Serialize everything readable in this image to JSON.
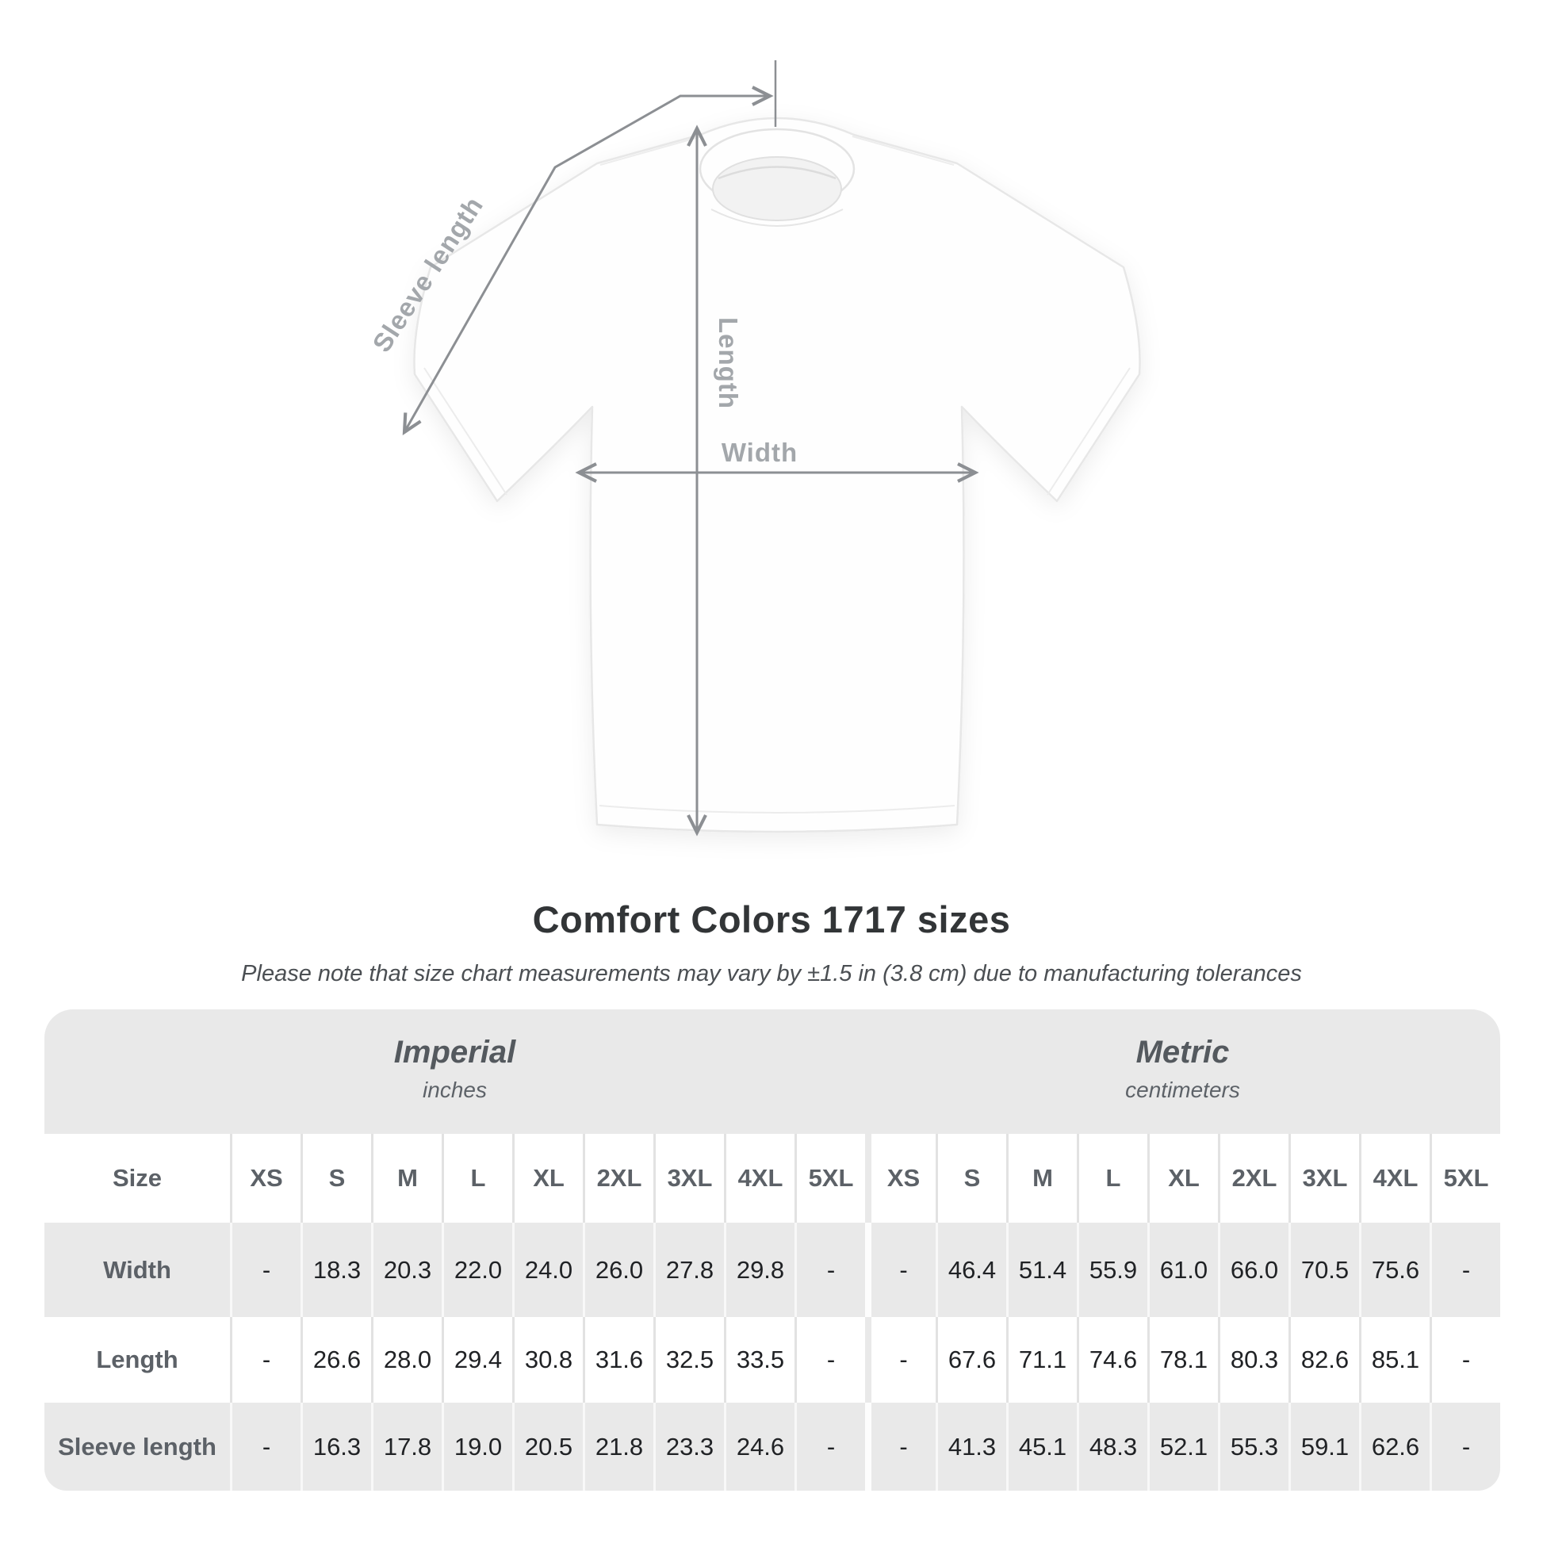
{
  "page": {
    "title": "Comfort Colors 1717 sizes",
    "subtitle": "Please note that size chart measurements may vary by ±1.5 in (3.8 cm) due to manufacturing tolerances"
  },
  "diagram": {
    "sleeve_label": "Sleeve length",
    "length_label": "Length",
    "width_label": "Width",
    "line_color": "#8c8f93",
    "label_color": "#a3a7ab"
  },
  "table": {
    "size_header": "Size",
    "sizes": [
      "XS",
      "S",
      "M",
      "L",
      "XL",
      "2XL",
      "3XL",
      "4XL",
      "5XL"
    ],
    "unit_groups": [
      {
        "label": "Imperial",
        "sublabel": "inches"
      },
      {
        "label": "Metric",
        "sublabel": "centimeters"
      }
    ],
    "rows": [
      {
        "label": "Width",
        "imperial": [
          "-",
          "18.3",
          "20.3",
          "22.0",
          "24.0",
          "26.0",
          "27.8",
          "29.8",
          "-"
        ],
        "metric": [
          "-",
          "46.4",
          "51.4",
          "55.9",
          "61.0",
          "66.0",
          "70.5",
          "75.6",
          "-"
        ]
      },
      {
        "label": "Length",
        "imperial": [
          "-",
          "26.6",
          "28.0",
          "29.4",
          "30.8",
          "31.6",
          "32.5",
          "33.5",
          "-"
        ],
        "metric": [
          "-",
          "67.6",
          "71.1",
          "74.6",
          "78.1",
          "80.3",
          "82.6",
          "85.1",
          "-"
        ]
      },
      {
        "label": "Sleeve length",
        "imperial": [
          "-",
          "16.3",
          "17.8",
          "19.0",
          "20.5",
          "21.8",
          "23.3",
          "24.6",
          "-"
        ],
        "metric": [
          "-",
          "41.3",
          "45.1",
          "48.3",
          "52.1",
          "55.3",
          "59.1",
          "62.6",
          "-"
        ]
      }
    ]
  },
  "chart_data": {
    "type": "table",
    "title": "Comfort Colors 1717 sizes",
    "note": "Measurements may vary by ±1.5 in (3.8 cm) due to manufacturing tolerances",
    "columns": [
      "Size",
      "XS",
      "S",
      "M",
      "L",
      "XL",
      "2XL",
      "3XL",
      "4XL",
      "5XL"
    ],
    "unit_groups": [
      {
        "name": "Imperial",
        "unit": "inches",
        "rows": [
          {
            "label": "Width",
            "values": [
              null,
              18.3,
              20.3,
              22.0,
              24.0,
              26.0,
              27.8,
              29.8,
              null
            ]
          },
          {
            "label": "Length",
            "values": [
              null,
              26.6,
              28.0,
              29.4,
              30.8,
              31.6,
              32.5,
              33.5,
              null
            ]
          },
          {
            "label": "Sleeve length",
            "values": [
              null,
              16.3,
              17.8,
              19.0,
              20.5,
              21.8,
              23.3,
              24.6,
              null
            ]
          }
        ]
      },
      {
        "name": "Metric",
        "unit": "centimeters",
        "rows": [
          {
            "label": "Width",
            "values": [
              null,
              46.4,
              51.4,
              55.9,
              61.0,
              66.0,
              70.5,
              75.6,
              null
            ]
          },
          {
            "label": "Length",
            "values": [
              null,
              67.6,
              71.1,
              74.6,
              78.1,
              80.3,
              82.6,
              85.1,
              null
            ]
          },
          {
            "label": "Sleeve length",
            "values": [
              null,
              41.3,
              45.1,
              48.3,
              52.1,
              55.3,
              59.1,
              62.6,
              null
            ]
          }
        ]
      }
    ]
  }
}
